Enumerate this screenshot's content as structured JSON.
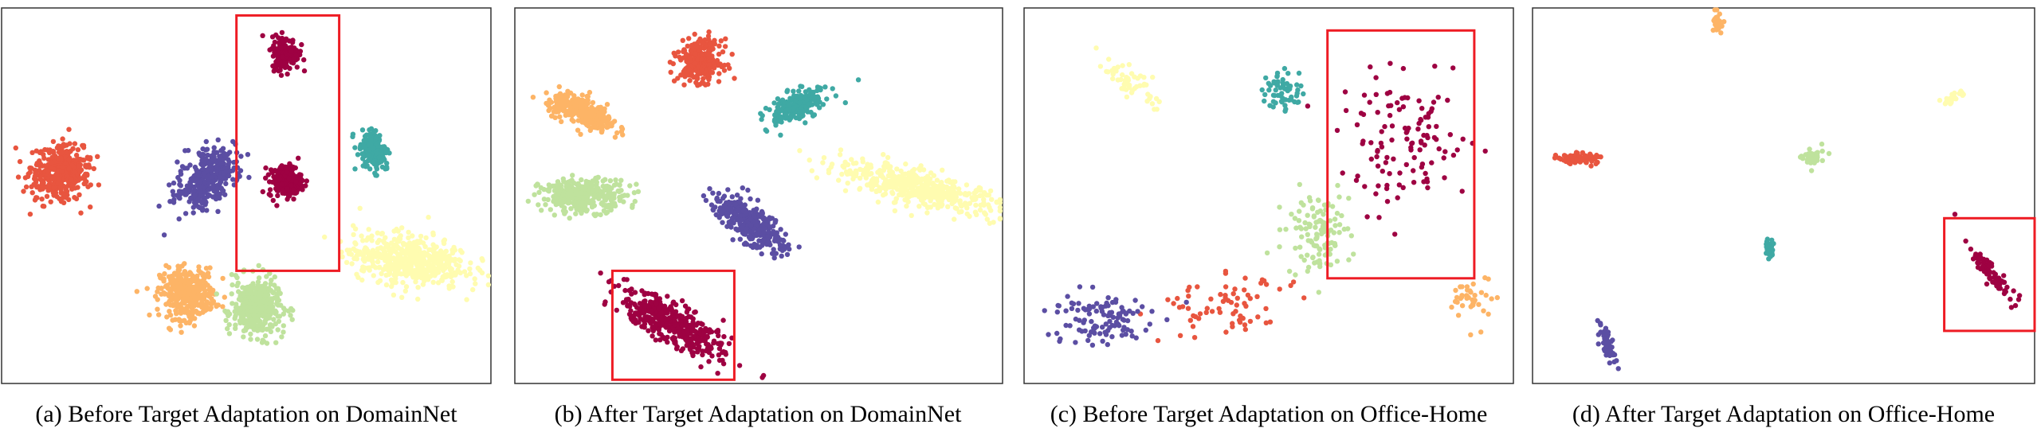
{
  "colors": {
    "clusters": [
      "#e8553f",
      "#5b4ea3",
      "#fdb466",
      "#bfe29d",
      "#3fa9a4",
      "#9e0142",
      "#fffcb0"
    ],
    "highlight": "#ee1c24",
    "frame": "#333333"
  },
  "panels": [
    {
      "caption": "(a) Before Target Adaptation on DomainNet"
    },
    {
      "caption": "(b) After Target Adaptation on DomainNet"
    },
    {
      "caption": "(c) Before Target Adaptation on Office-Home"
    },
    {
      "caption": "(d) After Target Adaptation on Office-Home"
    }
  ],
  "chart_data": [
    {
      "type": "scatter",
      "title": "(a) Before Target Adaptation on DomainNet",
      "xlim": [
        0,
        100
      ],
      "ylim": [
        0,
        100
      ],
      "axes_visible": false,
      "grid": false,
      "legend": "none",
      "clusters": [
        {
          "color": "#e8553f",
          "center": [
            12,
            56
          ],
          "spread": [
            5.5,
            6.5
          ],
          "angle": -15,
          "n": 420
        },
        {
          "color": "#5b4ea3",
          "center": [
            42,
            55
          ],
          "spread": [
            4.5,
            8
          ],
          "angle": -25,
          "n": 380
        },
        {
          "color": "#fdb466",
          "center": [
            38,
            24
          ],
          "spread": [
            5,
            6
          ],
          "angle": 0,
          "n": 380
        },
        {
          "color": "#bfe29d",
          "center": [
            52,
            20
          ],
          "spread": [
            4.5,
            7
          ],
          "angle": 8,
          "n": 380
        },
        {
          "color": "#3fa9a4",
          "center": [
            76,
            62
          ],
          "spread": [
            2.5,
            5
          ],
          "angle": 10,
          "n": 180
        },
        {
          "color": "#9e0142",
          "center": [
            58,
            88
          ],
          "spread": [
            2.5,
            4
          ],
          "angle": 0,
          "n": 170
        },
        {
          "color": "#9e0142",
          "center": [
            58,
            54
          ],
          "spread": [
            3,
            4
          ],
          "angle": 0,
          "n": 190
        },
        {
          "color": "#fffcb0",
          "center": [
            83,
            33
          ],
          "spread": [
            11,
            6
          ],
          "angle": -10,
          "n": 520
        }
      ],
      "highlight_box": [
        48,
        30,
        69,
        98
      ]
    },
    {
      "type": "scatter",
      "title": "(b) After Target Adaptation on DomainNet",
      "xlim": [
        0,
        100
      ],
      "ylim": [
        0,
        100
      ],
      "axes_visible": false,
      "grid": false,
      "legend": "none",
      "clusters": [
        {
          "color": "#fdb466",
          "center": [
            14,
            72
          ],
          "spread": [
            7,
            3
          ],
          "angle": -30,
          "n": 320
        },
        {
          "color": "#e8553f",
          "center": [
            38,
            86
          ],
          "spread": [
            4,
            5
          ],
          "angle": 0,
          "n": 280
        },
        {
          "color": "#3fa9a4",
          "center": [
            58,
            74
          ],
          "spread": [
            6,
            3
          ],
          "angle": 35,
          "n": 240
        },
        {
          "color": "#bfe29d",
          "center": [
            14,
            50
          ],
          "spread": [
            8,
            4
          ],
          "angle": 0,
          "n": 320
        },
        {
          "color": "#5b4ea3",
          "center": [
            48,
            43
          ],
          "spread": [
            9,
            3.5
          ],
          "angle": -45,
          "n": 360
        },
        {
          "color": "#fffcb0",
          "center": [
            83,
            52
          ],
          "spread": [
            16,
            4
          ],
          "angle": -18,
          "n": 460
        },
        {
          "color": "#9e0142",
          "center": [
            32,
            16
          ],
          "spread": [
            12,
            4
          ],
          "angle": -38,
          "n": 440
        }
      ],
      "highlight_box": [
        20,
        1,
        45,
        30
      ]
    },
    {
      "type": "scatter",
      "title": "(c) Before Target Adaptation on Office-Home",
      "xlim": [
        0,
        100
      ],
      "ylim": [
        0,
        100
      ],
      "axes_visible": false,
      "grid": false,
      "legend": "none",
      "clusters": [
        {
          "color": "#fffcb0",
          "center": [
            22,
            80
          ],
          "spread": [
            7,
            3
          ],
          "angle": -50,
          "n": 60
        },
        {
          "color": "#3fa9a4",
          "center": [
            53,
            78
          ],
          "spread": [
            4,
            5
          ],
          "angle": 0,
          "n": 60
        },
        {
          "color": "#9e0142",
          "center": [
            78,
            64
          ],
          "spread": [
            12,
            15
          ],
          "angle": 0,
          "n": 120
        },
        {
          "color": "#bfe29d",
          "center": [
            60,
            40
          ],
          "spread": [
            6,
            10
          ],
          "angle": 0,
          "n": 120
        },
        {
          "color": "#e8553f",
          "center": [
            40,
            22
          ],
          "spread": [
            11,
            8
          ],
          "angle": 20,
          "n": 70
        },
        {
          "color": "#5b4ea3",
          "center": [
            15,
            17
          ],
          "spread": [
            10,
            7
          ],
          "angle": 0,
          "n": 110
        },
        {
          "color": "#fdb466",
          "center": [
            92,
            22
          ],
          "spread": [
            4,
            6
          ],
          "angle": 0,
          "n": 40
        }
      ],
      "highlight_box": [
        62,
        28,
        92,
        94
      ]
    },
    {
      "type": "scatter",
      "title": "(d) After Target Adaptation on Office-Home",
      "xlim": [
        0,
        100
      ],
      "ylim": [
        0,
        100
      ],
      "axes_visible": false,
      "grid": false,
      "legend": "none",
      "clusters": [
        {
          "color": "#fdb466",
          "center": [
            37,
            96
          ],
          "spread": [
            0.8,
            2.5
          ],
          "angle": 0,
          "n": 30
        },
        {
          "color": "#fffcb0",
          "center": [
            84,
            76
          ],
          "spread": [
            2,
            0.8
          ],
          "angle": 40,
          "n": 30
        },
        {
          "color": "#e8553f",
          "center": [
            9,
            60
          ],
          "spread": [
            3.5,
            1.2
          ],
          "angle": -5,
          "n": 80
        },
        {
          "color": "#bfe29d",
          "center": [
            56,
            60
          ],
          "spread": [
            2,
            2.5
          ],
          "angle": 0,
          "n": 40
        },
        {
          "color": "#3fa9a4",
          "center": [
            47,
            36
          ],
          "spread": [
            0.9,
            2.5
          ],
          "angle": 0,
          "n": 30
        },
        {
          "color": "#5b4ea3",
          "center": [
            15,
            10
          ],
          "spread": [
            1,
            5
          ],
          "angle": 15,
          "n": 60
        },
        {
          "color": "#9e0142",
          "center": [
            91,
            30
          ],
          "spread": [
            1.5,
            7
          ],
          "angle": 30,
          "n": 80
        }
      ],
      "highlight_box": [
        82,
        14,
        100,
        44
      ]
    }
  ]
}
